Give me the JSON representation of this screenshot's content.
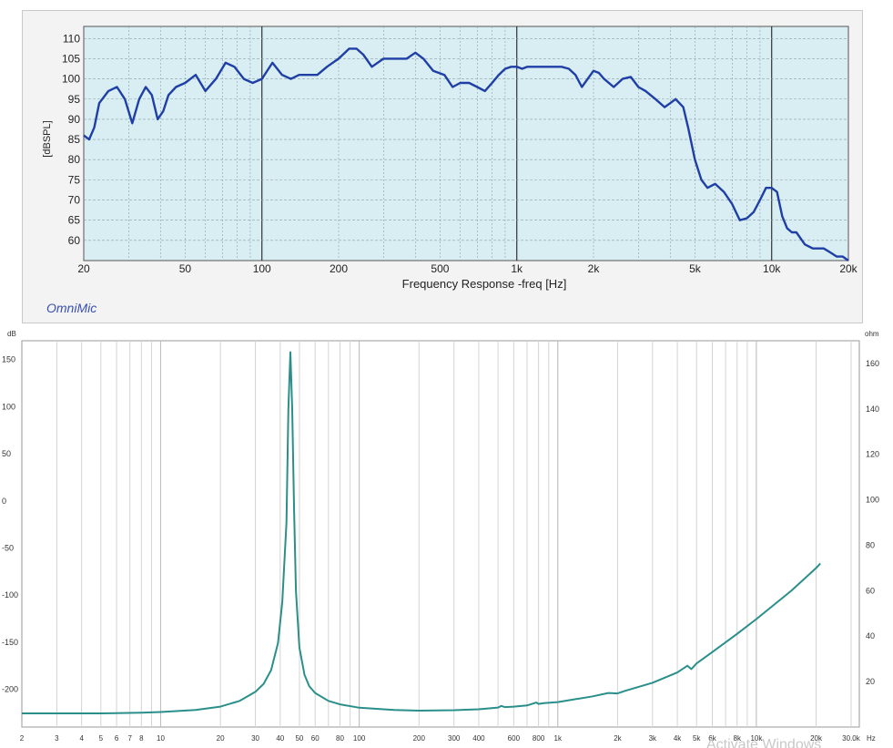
{
  "chart_data": [
    {
      "type": "line",
      "title": "",
      "xlabel": "Frequency Response -freq [Hz]",
      "ylabel": "[dBSPL]",
      "x_scale": "log",
      "xlim": [
        20,
        20000
      ],
      "ylim": [
        55,
        113
      ],
      "grid": true,
      "x_ticks": [
        20,
        50,
        100,
        200,
        500,
        1000,
        2000,
        5000,
        10000,
        20000
      ],
      "x_tick_labels": [
        "20",
        "50",
        "100",
        "200",
        "500",
        "1k",
        "2k",
        "5k",
        "10k",
        "20k"
      ],
      "y_ticks": [
        60,
        65,
        70,
        75,
        80,
        85,
        90,
        95,
        100,
        105,
        110
      ],
      "y_tick_labels": [
        "60",
        "65",
        "70",
        "75",
        "80",
        "85",
        "90",
        "95",
        "100",
        "105",
        "110"
      ],
      "line_color": "#1f3fa6",
      "plot_background": "#d8eef2",
      "series": [
        {
          "x": [
            20,
            21,
            22,
            23,
            25,
            27,
            29,
            31,
            33,
            35,
            37,
            39,
            41,
            43,
            46,
            50,
            55,
            60,
            66,
            72,
            78,
            85,
            92,
            100,
            110,
            120,
            130,
            140,
            150,
            165,
            180,
            200,
            220,
            235,
            250,
            270,
            300,
            330,
            370,
            400,
            430,
            470,
            520,
            560,
            600,
            650,
            700,
            750,
            800,
            850,
            900,
            950,
            1000,
            1050,
            1100,
            1200,
            1300,
            1400,
            1500,
            1600,
            1700,
            1800,
            2000,
            2100,
            2200,
            2400,
            2500,
            2600,
            2800,
            3000,
            3200,
            3500,
            3800,
            4000,
            4200,
            4500,
            4700,
            5000,
            5300,
            5600,
            6000,
            6500,
            7000,
            7500,
            8000,
            8500,
            9000,
            9500,
            10000,
            10500,
            11000,
            11500,
            12000,
            12500,
            13500,
            14500,
            16000,
            17000,
            18000,
            19000,
            20000
          ],
          "y": [
            86,
            85,
            88,
            94,
            97,
            98,
            95,
            89,
            95,
            98,
            96,
            90,
            92,
            96,
            98,
            99,
            101,
            97,
            100,
            104,
            103,
            100,
            99,
            100,
            104,
            101,
            100,
            101,
            101,
            101,
            103,
            105,
            107.5,
            107.5,
            106,
            103,
            105,
            105,
            105,
            106.5,
            105,
            102,
            101,
            98,
            99,
            99,
            98,
            97,
            99,
            101,
            102.5,
            103,
            103,
            102.5,
            103,
            103,
            103,
            103,
            103,
            102.5,
            101,
            98,
            102,
            101.5,
            100,
            98,
            99,
            100,
            100.5,
            98,
            97,
            95,
            93,
            94,
            95,
            93,
            88,
            80,
            75,
            73,
            74,
            72,
            69,
            65,
            65.5,
            67,
            70,
            73,
            73,
            72,
            66,
            63,
            62,
            62,
            59,
            58,
            58,
            57,
            56,
            56,
            55
          ]
        }
      ]
    },
    {
      "type": "line",
      "title": "",
      "x_scale": "log",
      "xlim": [
        2,
        33000
      ],
      "ylim": [
        -240,
        170
      ],
      "y2lim": [
        0,
        170
      ],
      "y_axis_unit": "dB",
      "y2_axis_unit": "ohm",
      "x_axis_unit": "Hz",
      "grid": true,
      "x_ticks": [
        2,
        3,
        4,
        5,
        6,
        7,
        8,
        10,
        20,
        30,
        40,
        50,
        60,
        80,
        100,
        200,
        300,
        400,
        600,
        800,
        1000,
        2000,
        3000,
        4000,
        5000,
        6000,
        8000,
        10000,
        20000,
        30000
      ],
      "x_tick_labels": [
        "2",
        "3",
        "4",
        "5",
        "6",
        "7",
        "8",
        "10",
        "20",
        "30",
        "40",
        "50",
        "60",
        "80",
        "100",
        "200",
        "300",
        "400",
        "600",
        "800",
        "1k",
        "2k",
        "3k",
        "4k",
        "5k",
        "6k",
        "8k",
        "10k",
        "20k",
        "30.0k"
      ],
      "y_ticks": [
        150,
        100,
        50,
        0,
        -50,
        -100,
        -150,
        -200
      ],
      "y_tick_labels": [
        "150",
        "100",
        "50",
        "0",
        "-50",
        "-100",
        "-150",
        "-200"
      ],
      "y2_ticks": [
        160,
        140,
        120,
        100,
        80,
        60,
        40,
        20
      ],
      "y2_tick_labels": [
        "160",
        "140",
        "120",
        "100",
        "80",
        "60",
        "40",
        "20"
      ],
      "line_color": "#2a8f8a",
      "series": [
        {
          "axis": "y2",
          "x": [
            2,
            3,
            5,
            8,
            10,
            15,
            20,
            25,
            30,
            33,
            36,
            39,
            41,
            43,
            44,
            45,
            46,
            47,
            48,
            50,
            53,
            56,
            60,
            70,
            80,
            100,
            150,
            200,
            300,
            400,
            500,
            520,
            540,
            600,
            700,
            780,
            800,
            850,
            1000,
            1500,
            1800,
            2000,
            2200,
            3000,
            4000,
            4500,
            4700,
            5000,
            6000,
            8000,
            10000,
            15000,
            20000,
            21000
          ],
          "y": [
            6,
            6,
            6,
            6.3,
            6.6,
            7.5,
            9,
            11.5,
            15.5,
            19,
            25,
            37,
            55,
            90,
            140,
            165,
            140,
            95,
            60,
            35,
            23,
            18,
            15,
            11.5,
            10,
            8.5,
            7.5,
            7.2,
            7.4,
            7.8,
            8.6,
            9.3,
            8.8,
            9,
            9.5,
            10.8,
            10.2,
            10.5,
            11,
            13.5,
            15,
            14.8,
            16,
            19.5,
            24,
            27,
            25.5,
            28,
            33,
            41,
            47.5,
            60,
            70,
            72
          ]
        }
      ]
    }
  ],
  "top_panel": {
    "brand": "OmniMic"
  },
  "watermark": "Activate Windows"
}
